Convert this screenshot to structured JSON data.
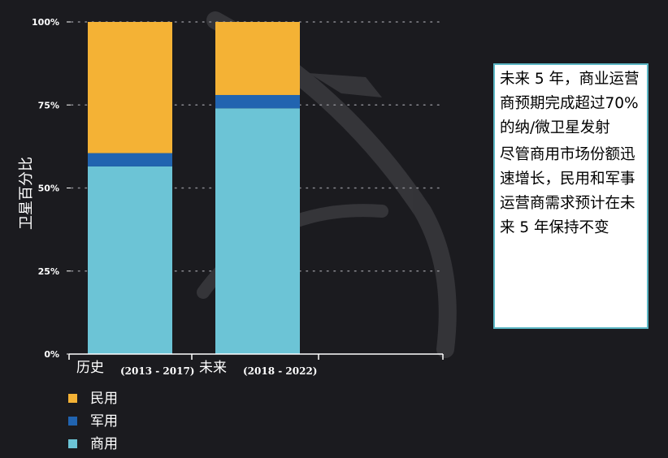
{
  "chart_data": {
    "type": "bar",
    "stacked": true,
    "orientation": "vertical",
    "categories": [
      "历史",
      "未来"
    ],
    "category_ranges": [
      "(2013 - 2017)",
      "(2018 - 2022)"
    ],
    "series": [
      {
        "name": "商用",
        "color": "#6cc4d6",
        "values": [
          56.5,
          74
        ]
      },
      {
        "name": "军用",
        "color": "#2164b0",
        "values": [
          4,
          4
        ]
      },
      {
        "name": "民用",
        "color": "#f4b235",
        "values": [
          39.5,
          22
        ]
      }
    ],
    "ylabel": "卫星百分比",
    "ylim": [
      0,
      100
    ],
    "yticks": [
      0,
      25,
      50,
      75,
      100
    ],
    "ytick_labels": [
      "0%",
      "25%",
      "50%",
      "75%",
      "100%"
    ],
    "legend_order": [
      "民用",
      "军用",
      "商用"
    ],
    "legend_position": "bottom-left",
    "grid": "horizontal-dotted"
  },
  "notes": {
    "paragraph_1": "未来 5 年，商业运营商预期完成超过70%的纳/微卫星发射",
    "paragraph_2": "尽管商用市场份额迅速增长，民用和军事运营商需求预计在未来 5 年保持不变"
  }
}
